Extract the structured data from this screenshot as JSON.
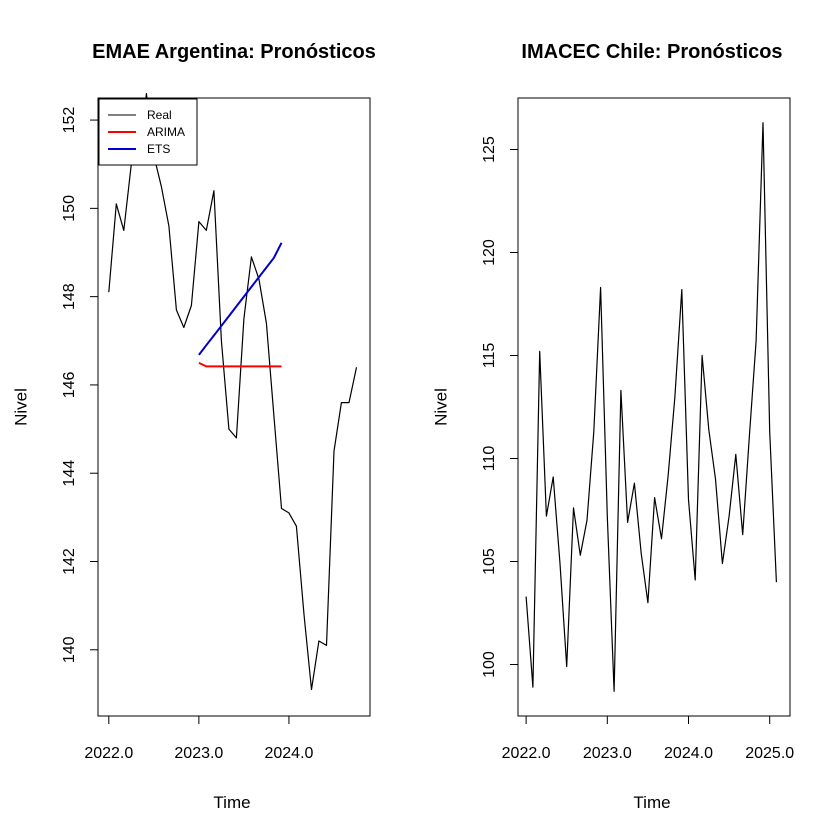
{
  "chart_data": [
    {
      "type": "line",
      "title": "EMAE Argentina: Pronósticos",
      "xlabel": "Time",
      "ylabel": "Nivel",
      "xlim": [
        1.9,
        4.8
      ],
      "ylim": [
        138.5,
        152.5
      ],
      "xticks": [
        2022.0,
        2023.0,
        2024.0
      ],
      "xtick_labels": [
        "2022.0",
        "2023.0",
        "2024.0"
      ],
      "yticks": [
        140,
        142,
        144,
        146,
        148,
        150,
        152
      ],
      "ytick_labels": [
        "140",
        "142",
        "144",
        "146",
        "148",
        "150",
        "152"
      ],
      "grid": false,
      "legend": {
        "position": "top-left",
        "entries": [
          {
            "label": "Real",
            "color": "#000000"
          },
          {
            "label": "ARIMA",
            "color": "#ff0000"
          },
          {
            "label": "ETS",
            "color": "#0000cc"
          }
        ]
      },
      "series": [
        {
          "name": "Real",
          "color": "#000000",
          "x": [
            2022.0,
            2022.083,
            2022.167,
            2022.25,
            2022.333,
            2022.417,
            2022.5,
            2022.583,
            2022.667,
            2022.75,
            2022.833,
            2022.917,
            2023.0,
            2023.083,
            2023.167,
            2023.25,
            2023.333,
            2023.417,
            2023.5,
            2023.583,
            2023.667,
            2023.75,
            2023.833,
            2023.917,
            2024.0,
            2024.083,
            2024.167,
            2024.25,
            2024.333,
            2024.417,
            2024.5,
            2024.583,
            2024.667,
            2024.75
          ],
          "values": [
            148.1,
            150.1,
            149.5,
            151.0,
            151.0,
            152.6,
            151.2,
            150.5,
            149.6,
            147.7,
            147.3,
            147.8,
            149.7,
            149.5,
            150.4,
            147.0,
            145.0,
            144.8,
            147.5,
            148.9,
            148.4,
            147.4,
            145.3,
            143.2,
            143.1,
            142.8,
            140.8,
            139.1,
            140.2,
            140.1,
            144.5,
            145.6,
            145.6,
            146.4
          ]
        },
        {
          "name": "ARIMA",
          "color": "#ff0000",
          "x": [
            2023.0,
            2023.083,
            2023.167,
            2023.25,
            2023.333,
            2023.417,
            2023.5,
            2023.583,
            2023.667,
            2023.75,
            2023.833,
            2023.917
          ],
          "values": [
            146.5,
            146.42,
            146.42,
            146.42,
            146.42,
            146.42,
            146.42,
            146.42,
            146.42,
            146.42,
            146.42,
            146.42
          ]
        },
        {
          "name": "ETS",
          "color": "#0000cc",
          "x": [
            2023.0,
            2023.083,
            2023.167,
            2023.25,
            2023.333,
            2023.417,
            2023.5,
            2023.583,
            2023.667,
            2023.75,
            2023.833,
            2023.917
          ],
          "values": [
            146.68,
            146.9,
            147.12,
            147.34,
            147.56,
            147.78,
            148.0,
            148.22,
            148.44,
            148.66,
            148.88,
            149.22
          ]
        }
      ]
    },
    {
      "type": "line",
      "title": "IMACEC Chile: Pronósticos",
      "xlabel": "Time",
      "ylabel": "Nivel",
      "xlim": [
        2021.9,
        2025.25
      ],
      "ylim": [
        97.5,
        127.5
      ],
      "xticks": [
        2022.0,
        2023.0,
        2024.0,
        2025.0
      ],
      "xtick_labels": [
        "2022.0",
        "2023.0",
        "2024.0",
        "2025.0"
      ],
      "yticks": [
        100,
        105,
        110,
        115,
        120,
        125
      ],
      "ytick_labels": [
        "100",
        "105",
        "110",
        "115",
        "120",
        "125"
      ],
      "grid": false,
      "series": [
        {
          "color": "#000000",
          "x": [
            2022.0,
            2022.083,
            2022.167,
            2022.25,
            2022.333,
            2022.417,
            2022.5,
            2022.583,
            2022.667,
            2022.75,
            2022.833,
            2022.917,
            2023.0,
            2023.083,
            2023.167,
            2023.25,
            2023.333,
            2023.417,
            2023.5,
            2023.583,
            2023.667,
            2023.75,
            2023.833,
            2023.917,
            2024.0,
            2024.083,
            2024.167,
            2024.25,
            2024.333,
            2024.417,
            2024.5,
            2024.583,
            2024.667,
            2024.75,
            2024.833,
            2024.917,
            2025.0,
            2025.083
          ],
          "values": [
            103.3,
            98.9,
            115.2,
            107.2,
            109.1,
            104.9,
            99.9,
            107.6,
            105.3,
            107.0,
            111.3,
            118.3,
            107.2,
            98.7,
            113.3,
            106.9,
            108.8,
            105.4,
            103.0,
            108.1,
            106.1,
            109.2,
            113.0,
            118.2,
            108.0,
            104.1,
            115.0,
            111.4,
            109.0,
            104.9,
            107.2,
            110.2,
            106.3,
            111.1,
            115.7,
            126.3,
            111.3,
            104.0
          ]
        }
      ]
    }
  ]
}
